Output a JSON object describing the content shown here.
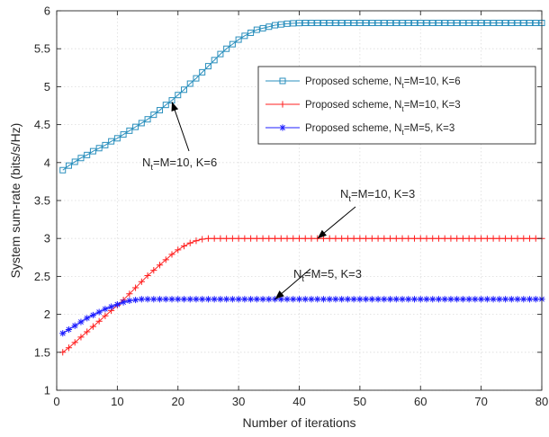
{
  "chart_data": {
    "type": "line",
    "xlabel": "Number of iterations",
    "ylabel": "System sum-rate (bits/s/Hz)",
    "xlim": [
      0,
      80
    ],
    "ylim": [
      1,
      6
    ],
    "xticks": [
      0,
      10,
      20,
      30,
      40,
      50,
      60,
      70,
      80
    ],
    "yticks": [
      1,
      1.5,
      2,
      2.5,
      3,
      3.5,
      4,
      4.5,
      5,
      5.5,
      6
    ],
    "grid": true,
    "legend_position": "top-right",
    "series": [
      {
        "name": "Proposed scheme, Nt=M=10, K=6",
        "legend": {
          "pre": "Proposed scheme, N",
          "sub": "t",
          "post": "=M=10, K=6"
        },
        "color": "#2a8fbd",
        "marker": "square",
        "x": [
          1,
          2,
          3,
          4,
          5,
          6,
          7,
          8,
          9,
          10,
          11,
          12,
          13,
          14,
          15,
          16,
          17,
          18,
          19,
          20,
          21,
          22,
          23,
          24,
          25,
          26,
          27,
          28,
          29,
          30,
          31,
          32,
          33,
          34,
          35,
          36,
          37,
          38,
          39,
          40,
          41,
          42,
          43,
          44,
          45,
          46,
          47,
          48,
          49,
          50,
          51,
          52,
          53,
          54,
          55,
          56,
          57,
          58,
          59,
          60,
          61,
          62,
          63,
          64,
          65,
          66,
          67,
          68,
          69,
          70,
          71,
          72,
          73,
          74,
          75,
          76,
          77,
          78,
          79,
          80
        ],
        "y": [
          3.9,
          3.96,
          4.01,
          4.06,
          4.1,
          4.15,
          4.19,
          4.23,
          4.28,
          4.32,
          4.37,
          4.42,
          4.47,
          4.52,
          4.57,
          4.63,
          4.69,
          4.76,
          4.82,
          4.89,
          4.96,
          5.04,
          5.11,
          5.19,
          5.27,
          5.35,
          5.43,
          5.5,
          5.56,
          5.62,
          5.67,
          5.71,
          5.75,
          5.77,
          5.79,
          5.81,
          5.82,
          5.83,
          5.835,
          5.838,
          5.84,
          5.84,
          5.84,
          5.84,
          5.84,
          5.84,
          5.84,
          5.84,
          5.84,
          5.84,
          5.84,
          5.84,
          5.84,
          5.84,
          5.84,
          5.84,
          5.84,
          5.84,
          5.84,
          5.84,
          5.84,
          5.84,
          5.84,
          5.84,
          5.84,
          5.84,
          5.84,
          5.84,
          5.84,
          5.84,
          5.84,
          5.84,
          5.84,
          5.84,
          5.84,
          5.84,
          5.84,
          5.84,
          5.84,
          5.84
        ]
      },
      {
        "name": "Proposed scheme, Nt=M=10, K=3",
        "legend": {
          "pre": "Proposed scheme, N",
          "sub": "t",
          "post": "=M=10, K=3"
        },
        "color": "#ff1f1f",
        "marker": "plus",
        "x": [
          1,
          2,
          3,
          4,
          5,
          6,
          7,
          8,
          9,
          10,
          11,
          12,
          13,
          14,
          15,
          16,
          17,
          18,
          19,
          20,
          21,
          22,
          23,
          24,
          25,
          26,
          27,
          28,
          29,
          30,
          31,
          32,
          33,
          34,
          35,
          36,
          37,
          38,
          39,
          40,
          41,
          42,
          43,
          44,
          45,
          46,
          47,
          48,
          49,
          50,
          51,
          52,
          53,
          54,
          55,
          56,
          57,
          58,
          59,
          60,
          61,
          62,
          63,
          64,
          65,
          66,
          67,
          68,
          69,
          70,
          71,
          72,
          73,
          74,
          75,
          76,
          77,
          78,
          79,
          80
        ],
        "y": [
          1.5,
          1.56,
          1.63,
          1.7,
          1.77,
          1.84,
          1.91,
          1.98,
          2.05,
          2.12,
          2.19,
          2.27,
          2.35,
          2.43,
          2.51,
          2.58,
          2.65,
          2.72,
          2.79,
          2.85,
          2.9,
          2.94,
          2.97,
          2.99,
          3.0,
          3.0,
          3.0,
          3.0,
          3.0,
          3.0,
          3.0,
          3.0,
          3.0,
          3.0,
          3.0,
          3.0,
          3.0,
          3.0,
          3.0,
          3.0,
          3.0,
          3.0,
          3.0,
          3.0,
          3.0,
          3.0,
          3.0,
          3.0,
          3.0,
          3.0,
          3.0,
          3.0,
          3.0,
          3.0,
          3.0,
          3.0,
          3.0,
          3.0,
          3.0,
          3.0,
          3.0,
          3.0,
          3.0,
          3.0,
          3.0,
          3.0,
          3.0,
          3.0,
          3.0,
          3.0,
          3.0,
          3.0,
          3.0,
          3.0,
          3.0,
          3.0,
          3.0,
          3.0,
          3.0,
          3.0
        ]
      },
      {
        "name": "Proposed scheme, Nt=M=5, K=3",
        "legend": {
          "pre": "Proposed scheme, N",
          "sub": "t",
          "post": "=M=5, K=3"
        },
        "color": "#1f1fff",
        "marker": "asterisk",
        "x": [
          1,
          2,
          3,
          4,
          5,
          6,
          7,
          8,
          9,
          10,
          11,
          12,
          13,
          14,
          15,
          16,
          17,
          18,
          19,
          20,
          21,
          22,
          23,
          24,
          25,
          26,
          27,
          28,
          29,
          30,
          31,
          32,
          33,
          34,
          35,
          36,
          37,
          38,
          39,
          40,
          41,
          42,
          43,
          44,
          45,
          46,
          47,
          48,
          49,
          50,
          51,
          52,
          53,
          54,
          55,
          56,
          57,
          58,
          59,
          60,
          61,
          62,
          63,
          64,
          65,
          66,
          67,
          68,
          69,
          70,
          71,
          72,
          73,
          74,
          75,
          76,
          77,
          78,
          79,
          80
        ],
        "y": [
          1.75,
          1.8,
          1.85,
          1.9,
          1.95,
          1.99,
          2.03,
          2.07,
          2.1,
          2.13,
          2.16,
          2.18,
          2.19,
          2.2,
          2.2,
          2.2,
          2.2,
          2.2,
          2.2,
          2.2,
          2.2,
          2.2,
          2.2,
          2.2,
          2.2,
          2.2,
          2.2,
          2.2,
          2.2,
          2.2,
          2.2,
          2.2,
          2.2,
          2.2,
          2.2,
          2.2,
          2.2,
          2.2,
          2.2,
          2.2,
          2.2,
          2.2,
          2.2,
          2.2,
          2.2,
          2.2,
          2.2,
          2.2,
          2.2,
          2.2,
          2.2,
          2.2,
          2.2,
          2.2,
          2.2,
          2.2,
          2.2,
          2.2,
          2.2,
          2.2,
          2.2,
          2.2,
          2.2,
          2.2,
          2.2,
          2.2,
          2.2,
          2.2,
          2.2,
          2.2,
          2.2,
          2.2,
          2.2,
          2.2,
          2.2,
          2.2,
          2.2,
          2.2,
          2.2,
          2.2
        ]
      }
    ],
    "annotations": [
      {
        "pre": "N",
        "sub": "t",
        "post": "=M=10, K=6",
        "target": {
          "x": 19,
          "y": 4.8
        }
      },
      {
        "pre": "N",
        "sub": "t",
        "post": "=M=10, K=3",
        "target": {
          "x": 43,
          "y": 3.0
        }
      },
      {
        "pre": "N",
        "sub": "t",
        "post": "=M=5, K=3",
        "target": {
          "x": 36,
          "y": 2.2
        }
      }
    ]
  }
}
